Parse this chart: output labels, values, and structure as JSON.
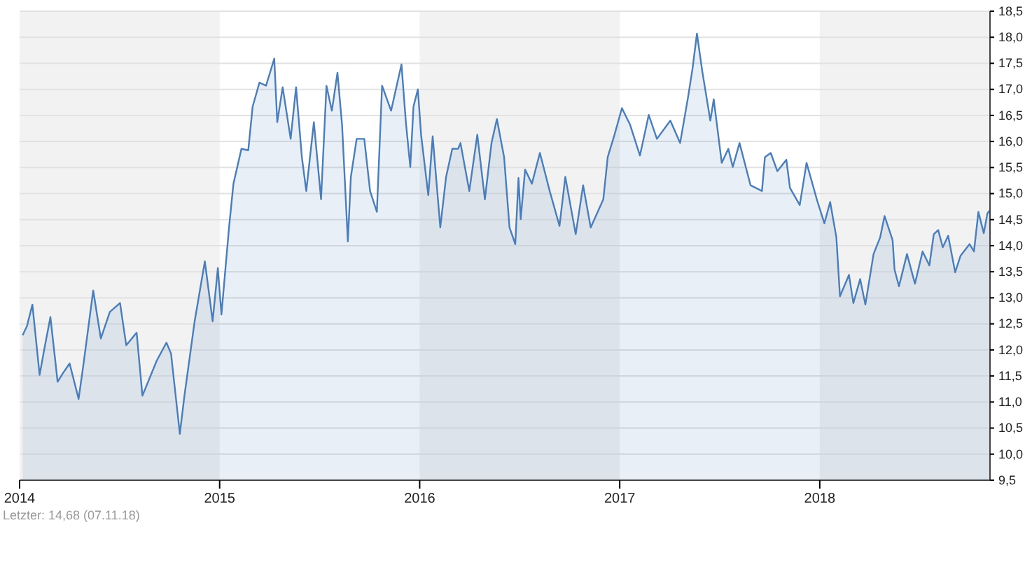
{
  "chart_data": {
    "type": "area",
    "xlim": [
      2014,
      2018.851
    ],
    "xticks": [
      2014,
      2015,
      2016,
      2017,
      2018
    ],
    "ylim": [
      9.5,
      18.5
    ],
    "yticks": [
      {
        "value": 9.5,
        "label": "9,5"
      },
      {
        "value": 10,
        "label": "10,0"
      },
      {
        "value": 10.5,
        "label": "10,5"
      },
      {
        "value": 11,
        "label": "11,0"
      },
      {
        "value": 11.5,
        "label": "11,5"
      },
      {
        "value": 12,
        "label": "12,0"
      },
      {
        "value": 12.5,
        "label": "12,5"
      },
      {
        "value": 13,
        "label": "13,0"
      },
      {
        "value": 13.5,
        "label": "13,5"
      },
      {
        "value": 14,
        "label": "14,0"
      },
      {
        "value": 14.5,
        "label": "14,5"
      },
      {
        "value": 15,
        "label": "15,0"
      },
      {
        "value": 15.5,
        "label": "15,5"
      },
      {
        "value": 16,
        "label": "16,0"
      },
      {
        "value": 16.5,
        "label": "16,5"
      },
      {
        "value": 17,
        "label": "17,0"
      },
      {
        "value": 17.5,
        "label": "17,5"
      },
      {
        "value": 18,
        "label": "18,0"
      },
      {
        "value": 18.5,
        "label": "18,5"
      }
    ],
    "grid": "y",
    "bands": [
      {
        "axis": "x",
        "from": 2014,
        "to": 2015,
        "color": "#f2f2f2"
      },
      {
        "axis": "x",
        "from": 2016,
        "to": 2017,
        "color": "#f2f2f2"
      },
      {
        "axis": "x",
        "from": 2018,
        "to": 2018.851,
        "color": "#f2f2f2"
      }
    ],
    "annotations": [
      "Letzter: 14,68 (07.11.18)"
    ],
    "series": [
      {
        "color": "#4a7ebb",
        "x": [
          2014.015,
          2014.037,
          2014.064,
          2014.1,
          2014.127,
          2014.154,
          2014.19,
          2014.216,
          2014.25,
          2014.295,
          2014.317,
          2014.368,
          2014.406,
          2014.451,
          2014.502,
          2014.533,
          2014.585,
          2014.614,
          2014.685,
          2014.734,
          2014.757,
          2014.801,
          2014.824,
          2014.875,
          2014.926,
          2014.965,
          2014.991,
          2015.009,
          2015.047,
          2015.069,
          2015.109,
          2015.143,
          2015.165,
          2015.199,
          2015.232,
          2015.273,
          2015.288,
          2015.315,
          2015.355,
          2015.382,
          2015.411,
          2015.433,
          2015.471,
          2015.507,
          2015.534,
          2015.561,
          2015.589,
          2015.612,
          2015.641,
          2015.656,
          2015.685,
          2015.723,
          2015.752,
          2015.786,
          2015.812,
          2015.857,
          2015.909,
          2015.931,
          2015.953,
          2015.969,
          2015.991,
          2016.007,
          2016.043,
          2016.065,
          2016.103,
          2016.132,
          2016.163,
          2016.192,
          2016.204,
          2016.248,
          2016.288,
          2016.326,
          2016.359,
          2016.386,
          2016.422,
          2016.449,
          2016.478,
          2016.494,
          2016.505,
          2016.527,
          2016.561,
          2016.601,
          2016.65,
          2016.699,
          2016.728,
          2016.78,
          2016.817,
          2016.855,
          2016.918,
          2016.94,
          2016.974,
          2017.011,
          2017.052,
          2017.101,
          2017.145,
          2017.186,
          2017.253,
          2017.302,
          2017.342,
          2017.364,
          2017.386,
          2017.413,
          2017.453,
          2017.47,
          2017.51,
          2017.543,
          2017.565,
          2017.599,
          2017.654,
          2017.711,
          2017.726,
          2017.755,
          2017.788,
          2017.833,
          2017.851,
          2017.9,
          2017.934,
          2017.989,
          2018.023,
          2018.052,
          2018.083,
          2018.101,
          2018.146,
          2018.168,
          2018.202,
          2018.228,
          2018.269,
          2018.302,
          2018.324,
          2018.364,
          2018.374,
          2018.396,
          2018.436,
          2018.476,
          2018.514,
          2018.548,
          2018.57,
          2018.592,
          2018.615,
          2018.642,
          2018.677,
          2018.704,
          2018.749,
          2018.771,
          2018.793,
          2018.82,
          2018.838,
          2018.851
        ],
        "values": [
          12.28,
          12.46,
          12.87,
          11.52,
          12.09,
          12.63,
          11.39,
          11.55,
          11.74,
          11.06,
          11.66,
          13.14,
          12.22,
          12.73,
          12.9,
          12.09,
          12.33,
          11.12,
          11.79,
          12.14,
          11.93,
          10.39,
          11.12,
          12.55,
          13.7,
          12.55,
          13.57,
          12.68,
          14.35,
          15.19,
          15.86,
          15.83,
          16.67,
          17.13,
          17.07,
          17.59,
          16.37,
          17.04,
          16.05,
          17.04,
          15.7,
          15.05,
          16.37,
          14.89,
          17.07,
          16.59,
          17.32,
          16.32,
          14.08,
          15.32,
          16.05,
          16.05,
          15.05,
          14.65,
          17.07,
          16.59,
          17.48,
          16.37,
          15.51,
          16.67,
          17.0,
          16.13,
          14.97,
          16.1,
          14.35,
          15.32,
          15.86,
          15.86,
          15.97,
          15.05,
          16.13,
          14.89,
          15.97,
          16.43,
          15.7,
          14.35,
          14.03,
          15.3,
          14.51,
          15.46,
          15.19,
          15.78,
          15.05,
          14.38,
          15.32,
          14.22,
          15.16,
          14.35,
          14.89,
          15.7,
          16.13,
          16.64,
          16.32,
          15.73,
          16.51,
          16.05,
          16.4,
          15.97,
          16.86,
          17.4,
          18.07,
          17.34,
          16.4,
          16.81,
          15.59,
          15.86,
          15.51,
          15.97,
          15.16,
          15.05,
          15.7,
          15.78,
          15.43,
          15.65,
          15.11,
          14.78,
          15.59,
          14.84,
          14.43,
          14.84,
          14.16,
          13.03,
          13.44,
          12.9,
          13.36,
          12.87,
          13.84,
          14.16,
          14.57,
          14.11,
          13.54,
          13.22,
          13.84,
          13.27,
          13.89,
          13.62,
          14.22,
          14.3,
          13.97,
          14.19,
          13.49,
          13.81,
          14.03,
          13.89,
          14.65,
          14.24,
          14.62,
          14.68
        ]
      }
    ]
  }
}
